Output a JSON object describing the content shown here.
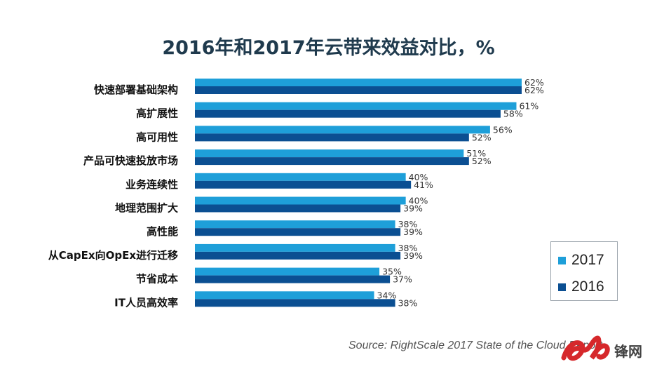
{
  "title": "2016年和2017年云带来效益对比，%",
  "source": "Source: RightScale 2017 State of the Cloud Report",
  "logo_text": "雷锋网",
  "colors": {
    "s2017": "#1e9fd9",
    "s2016": "#0b4f92"
  },
  "chart_data": {
    "type": "bar",
    "orientation": "horizontal",
    "title": "2016年和2017年云带来效益对比，%",
    "categories": [
      "快速部署基础架构",
      "高扩展性",
      "高可用性",
      "产品可快速投放市场",
      "业务连续性",
      "地理范围扩大",
      "高性能",
      "从CapEx向OpEx进行迁移",
      "节省成本",
      "IT人员高效率"
    ],
    "series": [
      {
        "name": "2017",
        "values": [
          62,
          61,
          56,
          51,
          40,
          40,
          38,
          38,
          35,
          34
        ],
        "labels": [
          "62%",
          "61%",
          "56%",
          "51%",
          "40%",
          "40%",
          "38%",
          "38%",
          "35%",
          "34%"
        ]
      },
      {
        "name": "2016",
        "values": [
          62,
          58,
          52,
          52,
          41,
          39,
          39,
          39,
          37,
          38
        ],
        "labels": [
          "62%",
          "58%",
          "52%",
          "52%",
          "41%",
          "39%",
          "39%",
          "39%",
          "37%",
          "38%"
        ]
      }
    ],
    "xlim": [
      0,
      62
    ],
    "grid": false,
    "legend_position": "bottom-right"
  }
}
